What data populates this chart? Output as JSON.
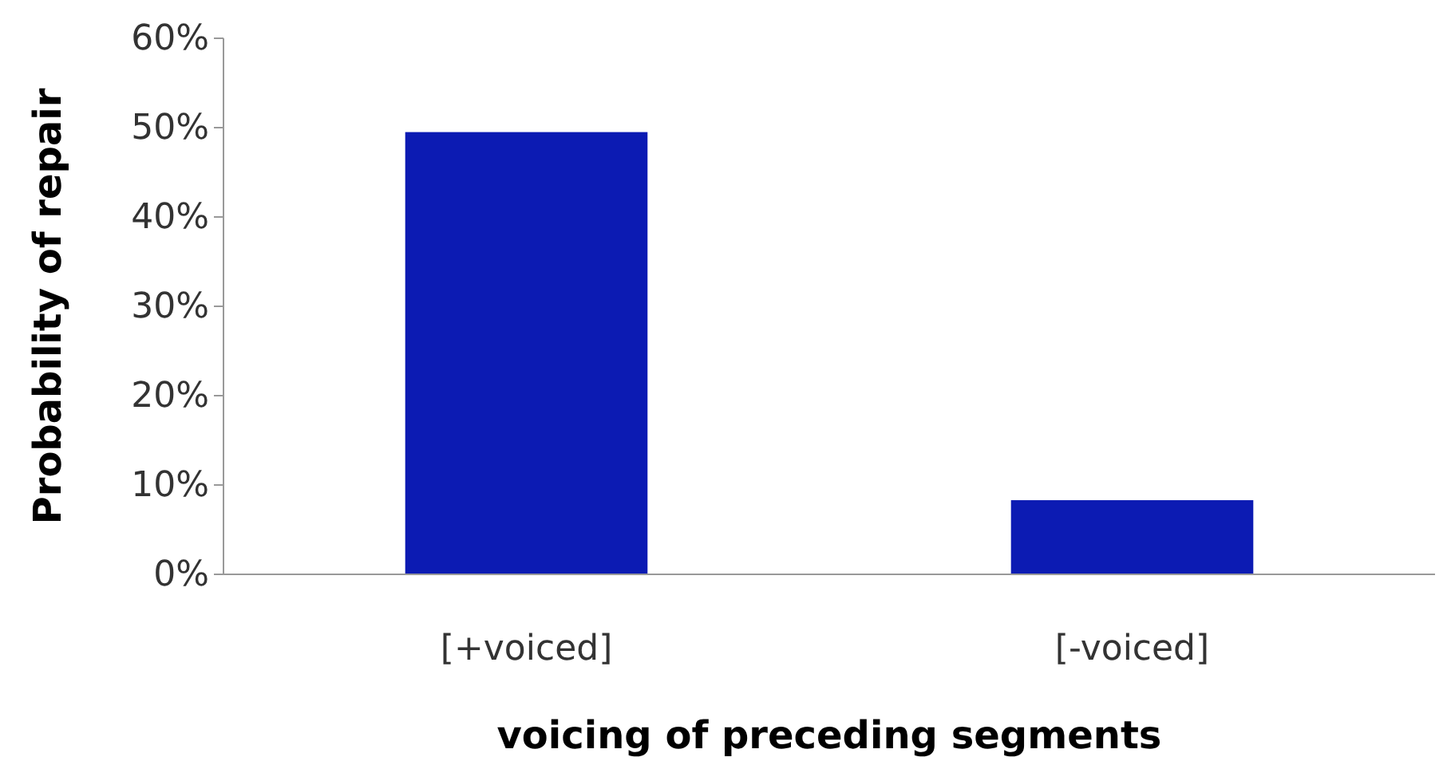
{
  "chart_data": {
    "type": "bar",
    "xlabel": "voicing of preceding segments",
    "ylabel": "Probability of repair",
    "categories": [
      "[+voiced]",
      "[-voiced]"
    ],
    "values": [
      49.5,
      8.3
    ],
    "color": "#0c1bb3",
    "ylim": [
      0,
      60
    ],
    "yticks": [
      {
        "value": 0,
        "label": "0%"
      },
      {
        "value": 10,
        "label": "10%"
      },
      {
        "value": 20,
        "label": "20%"
      },
      {
        "value": 30,
        "label": "30%"
      },
      {
        "value": 40,
        "label": "40%"
      },
      {
        "value": 50,
        "label": "50%"
      },
      {
        "value": 60,
        "label": "60%"
      }
    ],
    "grid": false
  }
}
